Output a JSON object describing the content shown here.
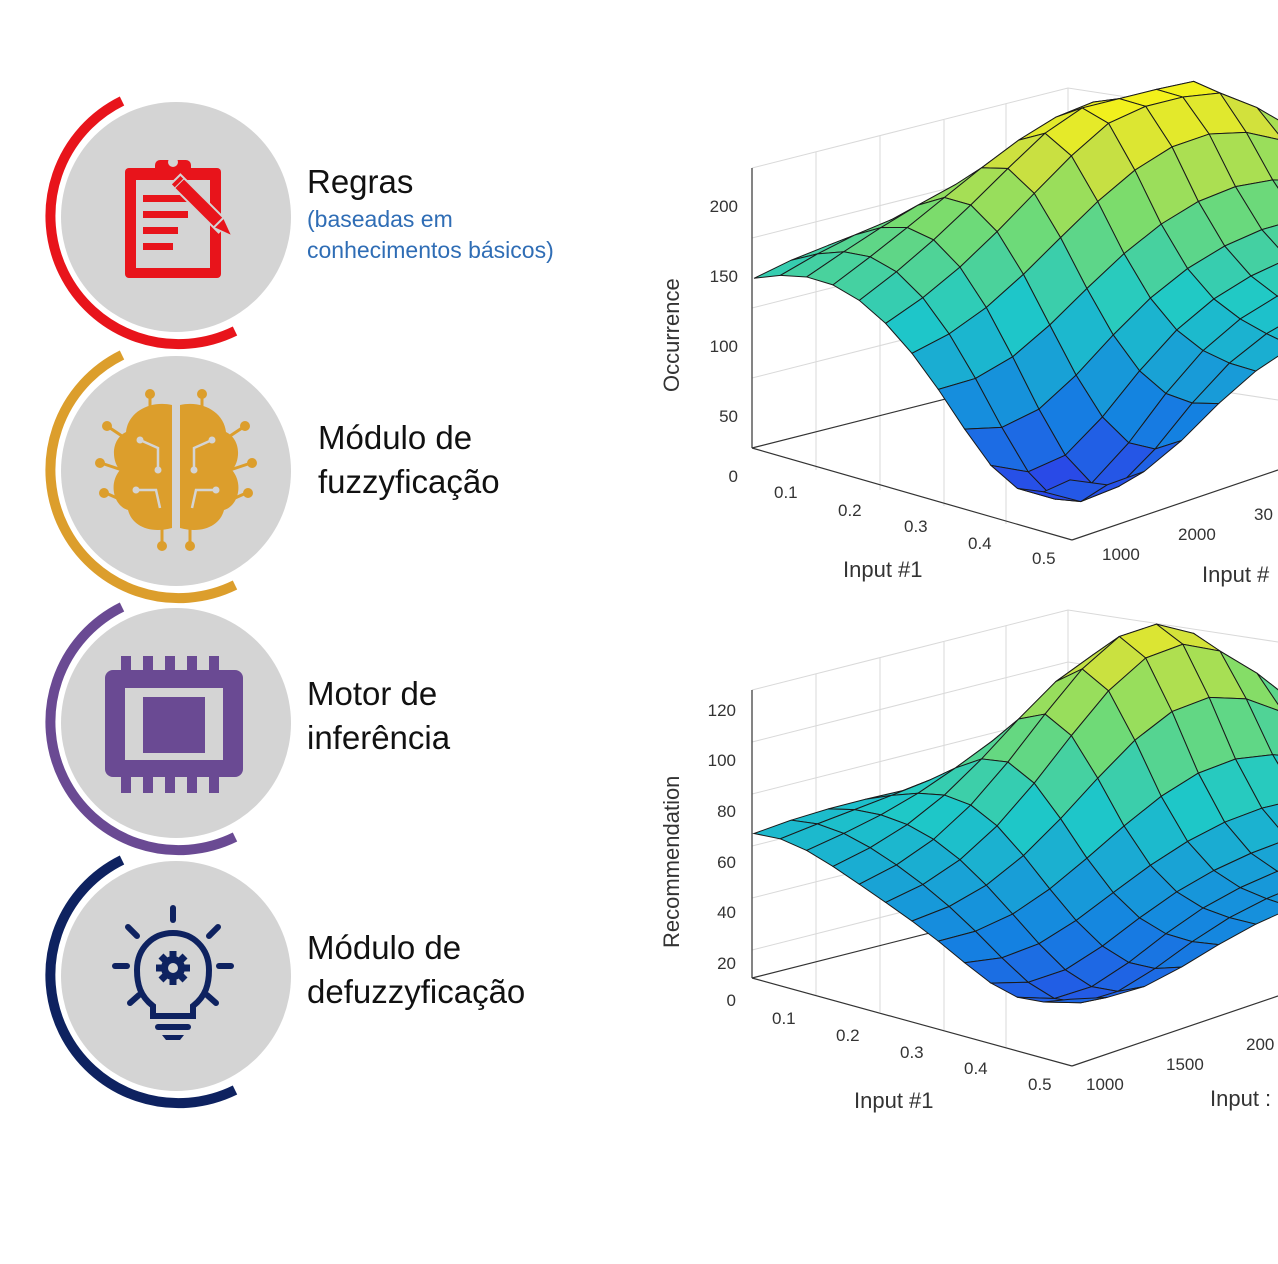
{
  "steps": [
    {
      "title": "Regras",
      "subtitle": "(baseadas em\nconhecimentos básicos)",
      "color": "#e8141b",
      "icon": "clipboard-pencil-icon"
    },
    {
      "title": "Módulo de\nfuzzyficação",
      "color": "#dc9e2c",
      "icon": "brain-circuit-icon"
    },
    {
      "title": "Motor de\ninferência",
      "color": "#6a4a93",
      "icon": "processor-chip-icon"
    },
    {
      "title": "Módulo de\ndefuzzyficação",
      "color": "#0e2260",
      "icon": "lightbulb-gear-icon"
    }
  ],
  "chart_data": [
    {
      "type": "surface",
      "zlabel": "Occurrence",
      "xlabel": "Input #1",
      "ylabel": "Input #",
      "z_ticks": [
        "0",
        "50",
        "100",
        "150",
        "200"
      ],
      "x_ticks": [
        "0.1",
        "0.2",
        "0.3",
        "0.4",
        "0.5"
      ],
      "y_ticks": [
        "1000",
        "2000",
        "30"
      ],
      "zlim": [
        0,
        230
      ]
    },
    {
      "type": "surface",
      "zlabel": "Recommendation",
      "xlabel": "Input #1",
      "ylabel": "Input :",
      "z_ticks": [
        "0",
        "20",
        "40",
        "60",
        "80",
        "100",
        "120"
      ],
      "x_ticks": [
        "0.1",
        "0.2",
        "0.3",
        "0.4",
        "0.5"
      ],
      "y_ticks": [
        "1000",
        "1500",
        "200"
      ],
      "zlim": [
        0,
        130
      ]
    }
  ]
}
